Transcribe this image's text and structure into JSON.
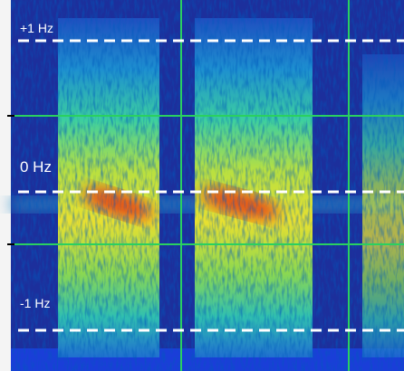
{
  "labels": [
    "+1 Hz",
    "0 Hz",
    "-1 Hz"
  ]
}
